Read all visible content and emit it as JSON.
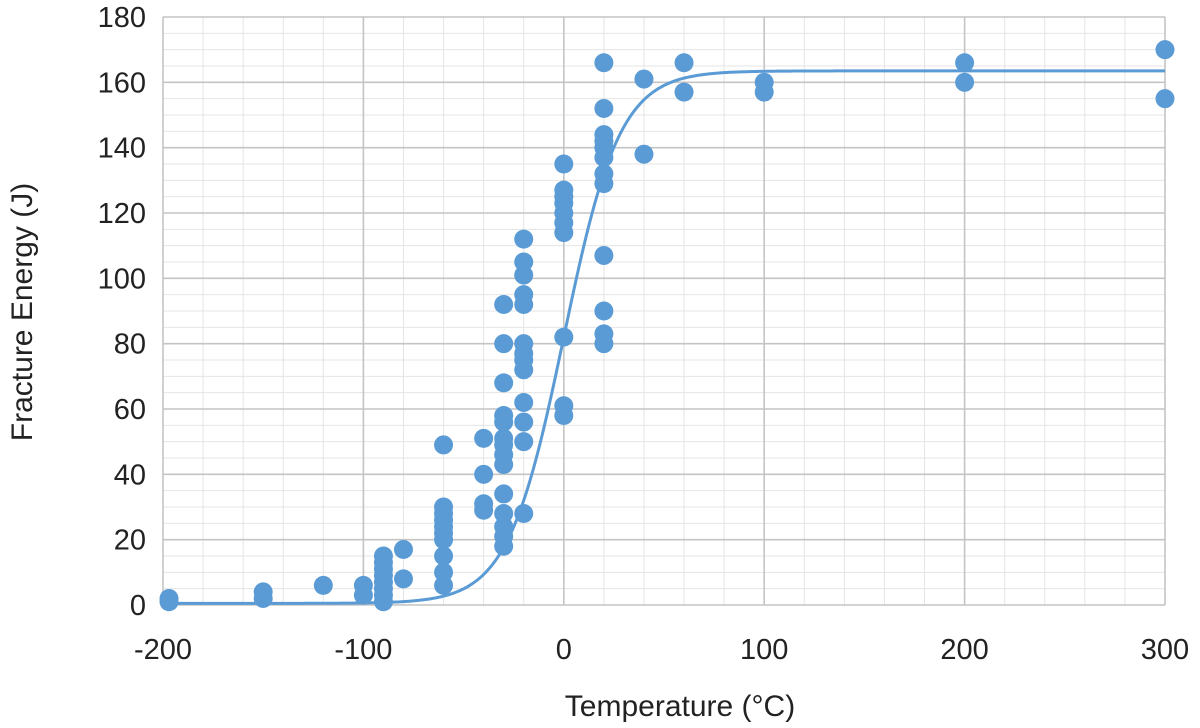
{
  "chart_data": {
    "type": "scatter",
    "title": "",
    "xlabel": "Temperature (°C)",
    "ylabel": "Fracture Energy (J)",
    "xlim": [
      -200,
      300
    ],
    "ylim": [
      0,
      180
    ],
    "x_major_step": 100,
    "y_major_step": 20,
    "x_minor_step": 20,
    "y_minor_step": 5,
    "x_ticks": [
      "-200",
      "-100",
      "0",
      "100",
      "200",
      "300"
    ],
    "y_ticks": [
      "0",
      "20",
      "40",
      "60",
      "80",
      "100",
      "120",
      "140",
      "160",
      "180"
    ],
    "grid": "major and minor",
    "color": "#5b9bd5",
    "series": [
      {
        "type": "scatter",
        "points": [
          [
            -197,
            1
          ],
          [
            -197,
            2
          ],
          [
            -150,
            2
          ],
          [
            -150,
            4
          ],
          [
            -120,
            6
          ],
          [
            -100,
            3
          ],
          [
            -100,
            6
          ],
          [
            -90,
            1
          ],
          [
            -90,
            3
          ],
          [
            -90,
            5
          ],
          [
            -90,
            7
          ],
          [
            -90,
            9
          ],
          [
            -90,
            11
          ],
          [
            -90,
            13
          ],
          [
            -90,
            15
          ],
          [
            -80,
            8
          ],
          [
            -80,
            17
          ],
          [
            -60,
            6
          ],
          [
            -60,
            10
          ],
          [
            -60,
            15
          ],
          [
            -60,
            20
          ],
          [
            -60,
            22
          ],
          [
            -60,
            24
          ],
          [
            -60,
            26
          ],
          [
            -60,
            28
          ],
          [
            -60,
            30
          ],
          [
            -60,
            49
          ],
          [
            -40,
            29
          ],
          [
            -40,
            31
          ],
          [
            -40,
            40
          ],
          [
            -40,
            51
          ],
          [
            -30,
            18
          ],
          [
            -30,
            21
          ],
          [
            -30,
            24
          ],
          [
            -30,
            28
          ],
          [
            -30,
            34
          ],
          [
            -30,
            43
          ],
          [
            -30,
            46
          ],
          [
            -30,
            49
          ],
          [
            -30,
            51
          ],
          [
            -30,
            56
          ],
          [
            -30,
            58
          ],
          [
            -30,
            68
          ],
          [
            -30,
            80
          ],
          [
            -30,
            92
          ],
          [
            -20,
            28
          ],
          [
            -20,
            50
          ],
          [
            -20,
            56
          ],
          [
            -20,
            62
          ],
          [
            -20,
            72
          ],
          [
            -20,
            75
          ],
          [
            -20,
            77
          ],
          [
            -20,
            80
          ],
          [
            -20,
            92
          ],
          [
            -20,
            95
          ],
          [
            -20,
            101
          ],
          [
            -20,
            105
          ],
          [
            -20,
            112
          ],
          [
            0,
            58
          ],
          [
            0,
            61
          ],
          [
            0,
            82
          ],
          [
            0,
            114
          ],
          [
            0,
            117
          ],
          [
            0,
            120
          ],
          [
            0,
            123
          ],
          [
            0,
            125
          ],
          [
            0,
            127
          ],
          [
            0,
            135
          ],
          [
            20,
            80
          ],
          [
            20,
            83
          ],
          [
            20,
            90
          ],
          [
            20,
            107
          ],
          [
            20,
            129
          ],
          [
            20,
            132
          ],
          [
            20,
            137
          ],
          [
            20,
            140
          ],
          [
            20,
            142
          ],
          [
            20,
            144
          ],
          [
            20,
            152
          ],
          [
            20,
            166
          ],
          [
            40,
            138
          ],
          [
            40,
            161
          ],
          [
            60,
            157
          ],
          [
            60,
            166
          ],
          [
            100,
            157
          ],
          [
            100,
            160
          ],
          [
            200,
            160
          ],
          [
            200,
            166
          ],
          [
            300,
            155
          ],
          [
            300,
            170
          ]
        ]
      },
      {
        "type": "line",
        "curve": "sigmoid-fit",
        "lower_shelf": 0.5,
        "upper_shelf": 163.5,
        "transition_temp": 0,
        "width": 28
      }
    ]
  }
}
